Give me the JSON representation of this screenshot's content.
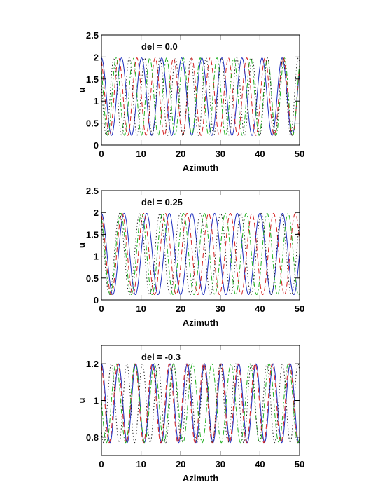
{
  "chart_data": [
    {
      "type": "line",
      "annotation": "del = 0.0",
      "xlabel": "Azimuth",
      "ylabel": "u",
      "xlim": [
        0,
        50
      ],
      "ylim": [
        0,
        2.5
      ],
      "xticks": [
        0,
        10,
        20,
        30,
        40,
        50
      ],
      "xtick_labels": [
        "0",
        "10",
        "20",
        "30",
        "40",
        "50"
      ],
      "yticks": [
        0,
        0.5,
        1,
        1.5,
        2,
        2.5
      ],
      "ytick_labels": [
        "0",
        "0.5",
        "1",
        "1.5",
        "2",
        "2.5"
      ],
      "series": [
        {
          "color": "#1f2fbf",
          "dash": "solid",
          "model": "1.1 + 0.88*cos(k*x + p)",
          "k": 1.24,
          "phase": 0.0,
          "amplitude": 0.88,
          "offset": 1.1
        },
        {
          "color": "#d42020",
          "dash": "dashed",
          "model": "1.1 + 0.88*cos(k*x + p)",
          "k": 1.36,
          "phase": 0.4,
          "amplitude": 0.88,
          "offset": 1.1
        },
        {
          "color": "#20b020",
          "dash": "dashdot",
          "model": "1.1 + 0.88*cos(k*x + p)",
          "k": 1.48,
          "phase": 0.8,
          "amplitude": 0.88,
          "offset": 1.1
        },
        {
          "color": "#222222",
          "dash": "dotted",
          "model": "1.1 + 0.88*cos(k*x + p)",
          "k": 1.62,
          "phase": 1.2,
          "amplitude": 0.88,
          "offset": 1.1
        }
      ]
    },
    {
      "type": "line",
      "annotation": "del = 0.25",
      "xlabel": "Azimuth",
      "ylabel": "u",
      "xlim": [
        0,
        50
      ],
      "ylim": [
        0,
        2.5
      ],
      "xticks": [
        0,
        10,
        20,
        30,
        40,
        50
      ],
      "xtick_labels": [
        "0",
        "10",
        "20",
        "30",
        "40",
        "50"
      ],
      "yticks": [
        0,
        0.5,
        1,
        1.5,
        2,
        2.5
      ],
      "ytick_labels": [
        "0",
        "0.5",
        "1",
        "1.5",
        "2",
        "2.5"
      ],
      "series": [
        {
          "color": "#1f2fbf",
          "dash": "solid",
          "model": "1.05 + 0.93*cos(k*x + p)",
          "k": 1.1,
          "phase": 0.0,
          "amplitude": 0.93,
          "offset": 1.05
        },
        {
          "color": "#d42020",
          "dash": "dashed",
          "model": "1.05 + 0.93*cos(k*x + p)",
          "k": 1.15,
          "phase": 0.3,
          "amplitude": 0.93,
          "offset": 1.05
        },
        {
          "color": "#20b020",
          "dash": "dashdot",
          "model": "1.05 + 0.93*cos(k*x + p)",
          "k": 1.19,
          "phase": 0.5,
          "amplitude": 0.93,
          "offset": 1.05
        },
        {
          "color": "#222222",
          "dash": "dotted",
          "model": "1.05 + 0.93*cos(k*x + p)",
          "k": 1.23,
          "phase": 0.7,
          "amplitude": 0.93,
          "offset": 1.05
        }
      ]
    },
    {
      "type": "line",
      "annotation": "del = -0.3",
      "xlabel": "Azimuth",
      "ylabel": "u",
      "xlim": [
        0,
        50
      ],
      "ylim": [
        0.7,
        1.3
      ],
      "xticks": [
        0,
        10,
        20,
        30,
        40,
        50
      ],
      "xtick_labels": [
        "0",
        "10",
        "20",
        "30",
        "40",
        "50"
      ],
      "yticks": [
        0.8,
        1.0,
        1.2
      ],
      "ytick_labels": [
        "0.8",
        "1",
        "1.2"
      ],
      "series": [
        {
          "color": "#1f2fbf",
          "dash": "solid",
          "model": "0.985 + 0.215*cos(k*x + p)",
          "k": 1.45,
          "phase": 0.0,
          "amplitude": 0.215,
          "offset": 0.985
        },
        {
          "color": "#d42020",
          "dash": "dashed",
          "model": "0.985 + 0.215*cos(k*x + p)",
          "k": 1.45,
          "phase": 0.3,
          "amplitude": 0.215,
          "offset": 0.985
        },
        {
          "color": "#20b020",
          "dash": "dashdot",
          "model": "0.985 + 0.215*cos(k*x + p)",
          "k": 1.3,
          "phase": 1.5,
          "amplitude": 0.215,
          "offset": 0.985
        },
        {
          "color": "#222222",
          "dash": "dotted",
          "model": "0.985 + 0.215*cos(k*x + p)",
          "k": 1.6,
          "phase": 2.3,
          "amplitude": 0.215,
          "offset": 0.985
        }
      ]
    }
  ]
}
